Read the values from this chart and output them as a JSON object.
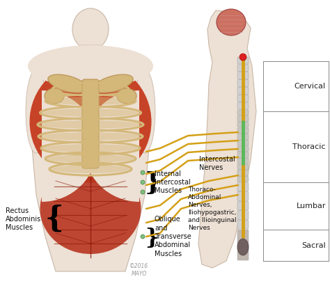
{
  "figure_size": [
    4.74,
    4.11
  ],
  "dpi": 100,
  "bg_color": "#ffffff",
  "body_skin": "#ede0d4",
  "body_edge": "#c8b8a8",
  "muscle_red": "#c53a1e",
  "muscle_red2": "#b03018",
  "bone_color": "#d4b87a",
  "bone_edge": "#b89050",
  "nerve_color": "#d4a017",
  "brain_pink": "#cc7060",
  "brain_dark": "#a84040",
  "green_cord": "#5cb85c",
  "spine_gray": "#c8c8c8",
  "spine_sections": [
    "Cervical",
    "Thoracic",
    "Lumbar",
    "Sacral"
  ],
  "copyright": "©2016\nMAYO"
}
